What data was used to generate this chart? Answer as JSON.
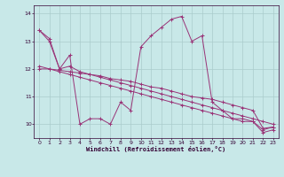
{
  "xlabel": "Windchill (Refroidissement éolien,°C)",
  "bg_color": "#c8e8e8",
  "line_color": "#993377",
  "grid_color": "#aacccc",
  "axis_color": "#330033",
  "xlim": [
    -0.5,
    23.5
  ],
  "ylim": [
    9.5,
    14.3
  ],
  "yticks": [
    10,
    11,
    12,
    13,
    14
  ],
  "xticks": [
    0,
    1,
    2,
    3,
    4,
    5,
    6,
    7,
    8,
    9,
    10,
    11,
    12,
    13,
    14,
    15,
    16,
    17,
    18,
    19,
    20,
    21,
    22,
    23
  ],
  "series": [
    [
      13.4,
      13.1,
      12.0,
      12.5,
      10.0,
      10.2,
      10.2,
      10.0,
      10.8,
      10.5,
      12.8,
      13.2,
      13.5,
      13.8,
      13.9,
      13.0,
      13.2,
      10.8,
      10.5,
      10.2,
      10.2,
      10.1,
      9.7,
      9.8
    ],
    [
      13.4,
      13.0,
      12.0,
      12.1,
      11.9,
      11.8,
      11.7,
      11.6,
      11.5,
      11.4,
      11.3,
      11.2,
      11.1,
      11.0,
      10.9,
      10.8,
      10.7,
      10.6,
      10.5,
      10.4,
      10.3,
      10.2,
      10.1,
      10.0
    ],
    [
      12.0,
      12.0,
      11.9,
      11.8,
      11.7,
      11.6,
      11.5,
      11.4,
      11.3,
      11.2,
      11.1,
      11.0,
      10.9,
      10.8,
      10.7,
      10.6,
      10.5,
      10.4,
      10.3,
      10.2,
      10.1,
      10.1,
      9.8,
      9.9
    ],
    [
      12.1,
      12.0,
      11.95,
      11.9,
      11.85,
      11.8,
      11.75,
      11.65,
      11.6,
      11.55,
      11.45,
      11.35,
      11.3,
      11.2,
      11.1,
      11.0,
      10.95,
      10.9,
      10.8,
      10.7,
      10.6,
      10.5,
      9.85,
      9.9
    ]
  ]
}
